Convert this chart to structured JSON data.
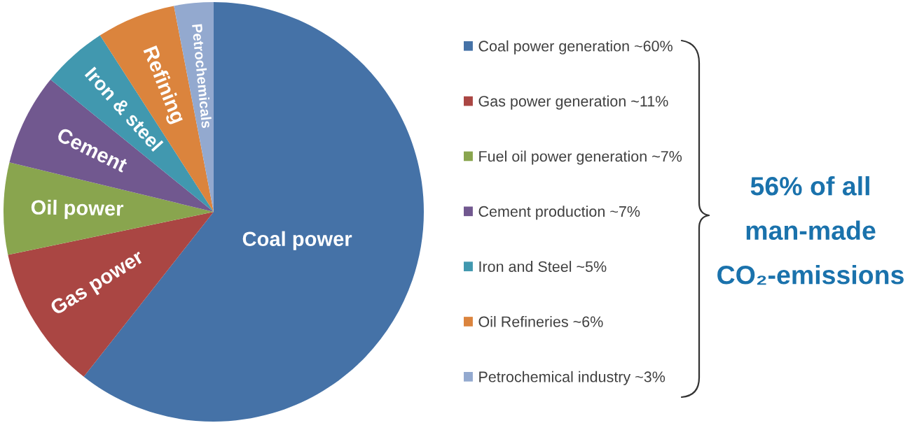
{
  "chart_data": {
    "type": "pie",
    "categories": [
      "Coal power generation ~60%",
      "Gas power generation ~11%",
      "Fuel oil power generation ~7%",
      "Cement production ~7%",
      "Iron and Steel ~5%",
      "Oil Refineries ~6%",
      "Petrochemical industry ~3%"
    ],
    "values": [
      60,
      11,
      7,
      7,
      5,
      6,
      3
    ],
    "colors": [
      "#4572a7",
      "#aa4643",
      "#89a54e",
      "#71588f",
      "#4198af",
      "#db843d",
      "#93a9cf"
    ],
    "value_labels": [
      "Coal power",
      "Gas power",
      "Oil power",
      "Cement",
      "Iron & steel",
      "Refining",
      "Petrochemicals"
    ],
    "legend": "right",
    "annotations": [
      "56% of all\nman-made\nCO₂-emissions"
    ]
  }
}
